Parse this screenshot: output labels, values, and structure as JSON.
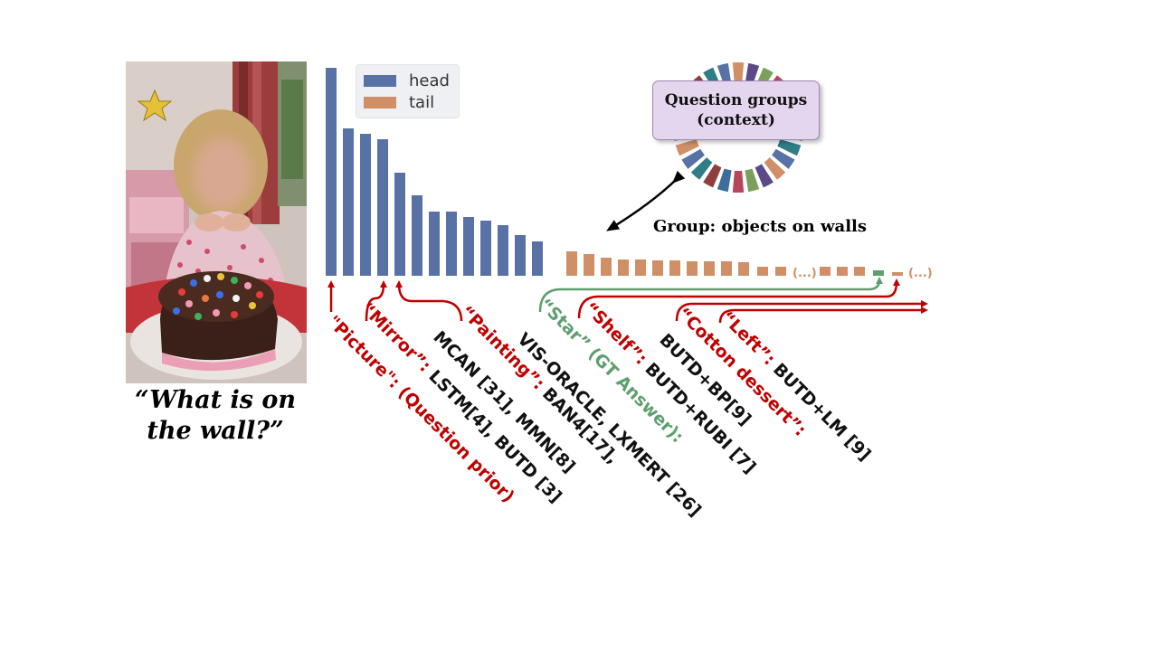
{
  "question": {
    "line1": "“What is on",
    "line2": "the wall?”"
  },
  "legend": {
    "head": "head",
    "tail": "tail"
  },
  "colors": {
    "head": "#5872a5",
    "tail": "#d08f66",
    "red": "#c00000",
    "green": "#5e9f6e"
  },
  "chart_data": {
    "type": "bar",
    "series": [
      {
        "name": "head",
        "values": [
          230,
          163,
          157,
          151,
          114,
          89,
          71,
          71,
          65,
          61,
          56,
          45,
          38
        ]
      },
      {
        "name": "tail",
        "values": [
          27,
          24,
          20,
          18,
          18,
          17,
          17,
          16,
          16,
          16,
          15,
          10,
          10,
          10,
          10,
          10,
          6,
          4
        ]
      }
    ],
    "ellipsis_label": "(...)"
  },
  "group_box": {
    "line1": "Question groups",
    "line2": "(context)"
  },
  "group_label": "Group: objects on walls",
  "annotations": [
    {
      "quote": "\"Picture\":",
      "rest": " (Question prior)"
    },
    {
      "quote": "“Mirror”:",
      "rest": " LSTM[4], BUTD [3]"
    },
    {
      "prefix": "MCAN [31], MMN[8]"
    },
    {
      "quote": "“Painting”:",
      "rest": " BAN4[17],"
    },
    {
      "prefix": "VIS-ORACLE, LXMERT [26]"
    },
    {
      "quote": "“Star” (GT Answer):"
    },
    {
      "quote": "“Shelf”:",
      "rest": " BUTD+RUBI [7]"
    },
    {
      "prefix": "BUTD+BP[9]"
    },
    {
      "quote": "“Cotton dessert”:"
    },
    {
      "quote": "“Left”:",
      "rest": " BUTD+LM [9]"
    }
  ]
}
